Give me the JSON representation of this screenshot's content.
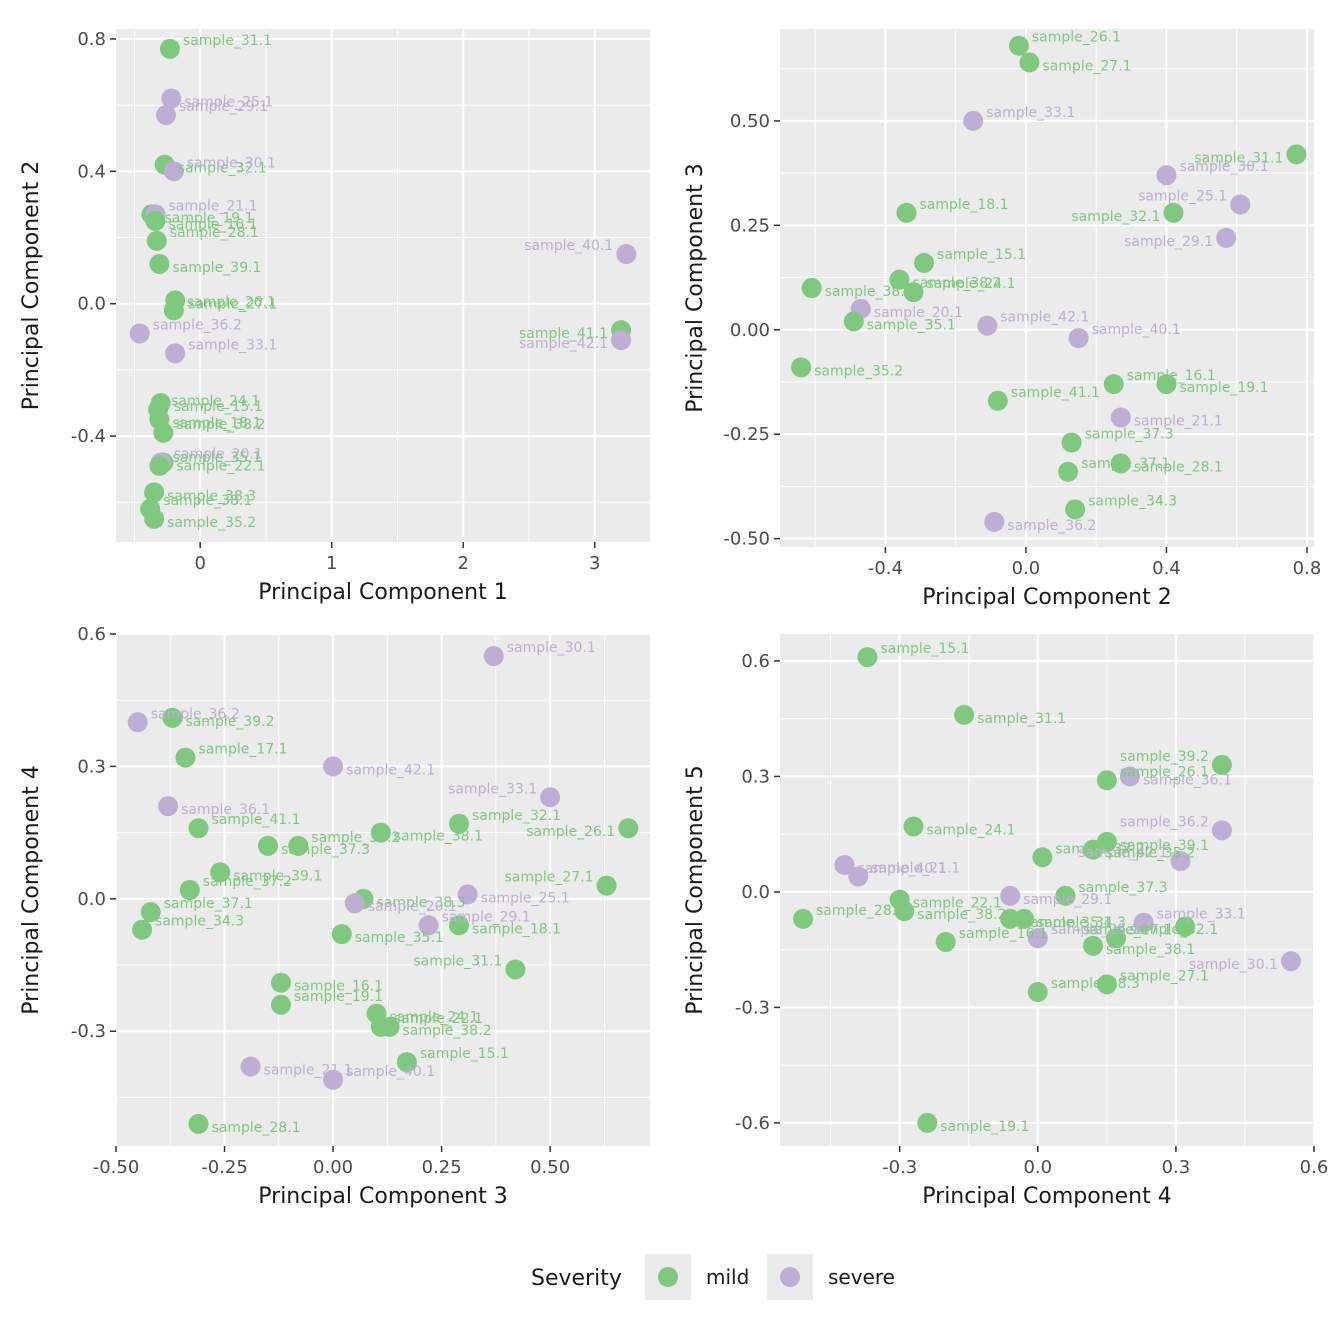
{
  "colors": {
    "mild": "#7fc97f",
    "severe": "#beaed4",
    "panel_bg": "#ebebeb",
    "grid": "#ffffff"
  },
  "legend": {
    "title": "Severity",
    "items": [
      {
        "key": "mild",
        "label": "mild"
      },
      {
        "key": "severe",
        "label": "severe"
      }
    ]
  },
  "chart_data": [
    {
      "type": "scatter",
      "xlabel": "Principal Component 1",
      "ylabel": "Principal Component 2",
      "xlim": [
        -0.64,
        3.42
      ],
      "ylim": [
        -0.72,
        0.83
      ],
      "xticks": [
        0,
        1,
        2,
        3
      ],
      "xtick_labels": [
        "0",
        "1",
        "2",
        "3"
      ],
      "yticks": [
        -0.4,
        0.0,
        0.4,
        0.8
      ],
      "ytick_labels": [
        "-0.4",
        "0.0",
        "0.4",
        "0.8"
      ],
      "points": [
        {
          "label": "sample_31.1",
          "severity": "mild",
          "x": -0.23,
          "y": 0.77
        },
        {
          "label": "sample_25.1",
          "severity": "severe",
          "x": -0.22,
          "y": 0.62
        },
        {
          "label": "sample_29.1",
          "severity": "severe",
          "x": -0.26,
          "y": 0.57
        },
        {
          "label": "sample_32.1",
          "severity": "mild",
          "x": -0.27,
          "y": 0.42
        },
        {
          "label": "sample_30.1",
          "severity": "severe",
          "x": -0.2,
          "y": 0.4
        },
        {
          "label": "sample_19.1",
          "severity": "mild",
          "x": -0.37,
          "y": 0.27
        },
        {
          "label": "sample_21.1",
          "severity": "severe",
          "x": -0.34,
          "y": 0.27
        },
        {
          "label": "sample_16.1",
          "severity": "mild",
          "x": -0.34,
          "y": 0.25
        },
        {
          "label": "sample_28.1",
          "severity": "mild",
          "x": -0.33,
          "y": 0.19
        },
        {
          "label": "sample_39.1",
          "severity": "mild",
          "x": -0.31,
          "y": 0.12
        },
        {
          "label": "sample_40.1",
          "severity": "severe",
          "x": 3.24,
          "y": 0.15
        },
        {
          "label": "sample_27.1",
          "severity": "mild",
          "x": -0.19,
          "y": 0.01
        },
        {
          "label": "sample_26.1",
          "severity": "mild",
          "x": -0.2,
          "y": -0.02
        },
        {
          "label": "sample_41.1",
          "severity": "mild",
          "x": 3.2,
          "y": -0.08
        },
        {
          "label": "sample_36.2",
          "severity": "severe",
          "x": -0.46,
          "y": -0.09
        },
        {
          "label": "sample_42.1",
          "severity": "severe",
          "x": 3.2,
          "y": -0.11
        },
        {
          "label": "sample_33.1",
          "severity": "severe",
          "x": -0.19,
          "y": -0.15
        },
        {
          "label": "sample_15.1",
          "severity": "mild",
          "x": -0.3,
          "y": -0.3
        },
        {
          "label": "sample_24.1",
          "severity": "mild",
          "x": -0.32,
          "y": -0.32
        },
        {
          "label": "sample_18.1",
          "severity": "mild",
          "x": -0.31,
          "y": -0.35
        },
        {
          "label": "sample_38.2",
          "severity": "mild",
          "x": -0.28,
          "y": -0.39
        },
        {
          "label": "sample_22.1",
          "severity": "mild",
          "x": -0.28,
          "y": -0.48
        },
        {
          "label": "sample_20.1",
          "severity": "severe",
          "x": -0.3,
          "y": -0.48
        },
        {
          "label": "sample_38.3",
          "severity": "mild",
          "x": -0.35,
          "y": -0.57
        },
        {
          "label": "sample_35.1",
          "severity": "mild",
          "x": -0.31,
          "y": -0.49
        },
        {
          "label": "sample_35.2",
          "severity": "mild",
          "x": -0.35,
          "y": -0.65
        },
        {
          "label": "sample_38.1",
          "severity": "mild",
          "x": -0.38,
          "y": -0.62
        }
      ]
    },
    {
      "type": "scatter",
      "xlabel": "Principal Component 2",
      "ylabel": "Principal Component 3",
      "xlim": [
        -0.7,
        0.82
      ],
      "ylim": [
        -0.52,
        0.72
      ],
      "xticks": [
        -0.4,
        0.0,
        0.4,
        0.8
      ],
      "xtick_labels": [
        "-0.4",
        "0.0",
        "0.4",
        "0.8"
      ],
      "yticks": [
        -0.5,
        -0.25,
        0.0,
        0.25,
        0.5
      ],
      "ytick_labels": [
        "-0.50",
        "-0.25",
        "0.00",
        "0.25",
        "0.50"
      ],
      "points": [
        {
          "label": "sample_26.1",
          "severity": "mild",
          "x": -0.02,
          "y": 0.68
        },
        {
          "label": "sample_27.1",
          "severity": "mild",
          "x": 0.01,
          "y": 0.64
        },
        {
          "label": "sample_33.1",
          "severity": "severe",
          "x": -0.15,
          "y": 0.5
        },
        {
          "label": "sample_31.1",
          "severity": "mild",
          "x": 0.77,
          "y": 0.42
        },
        {
          "label": "sample_30.1",
          "severity": "severe",
          "x": 0.4,
          "y": 0.37
        },
        {
          "label": "sample_32.1",
          "severity": "mild",
          "x": 0.42,
          "y": 0.28
        },
        {
          "label": "sample_25.1",
          "severity": "severe",
          "x": 0.61,
          "y": 0.3
        },
        {
          "label": "sample_29.1",
          "severity": "severe",
          "x": 0.57,
          "y": 0.22
        },
        {
          "label": "sample_18.1",
          "severity": "mild",
          "x": -0.34,
          "y": 0.28
        },
        {
          "label": "sample_38.2",
          "severity": "mild",
          "x": -0.36,
          "y": 0.12
        },
        {
          "label": "sample_15.1",
          "severity": "mild",
          "x": -0.29,
          "y": 0.16
        },
        {
          "label": "sample_38.1",
          "severity": "mild",
          "x": -0.61,
          "y": 0.1
        },
        {
          "label": "sample_24.1",
          "severity": "mild",
          "x": -0.32,
          "y": 0.09
        },
        {
          "label": "sample_20.1",
          "severity": "severe",
          "x": -0.47,
          "y": 0.05
        },
        {
          "label": "sample_42.1",
          "severity": "severe",
          "x": -0.11,
          "y": 0.01
        },
        {
          "label": "sample_35.1",
          "severity": "mild",
          "x": -0.49,
          "y": 0.02
        },
        {
          "label": "sample_40.1",
          "severity": "severe",
          "x": 0.15,
          "y": -0.02
        },
        {
          "label": "sample_35.2",
          "severity": "mild",
          "x": -0.64,
          "y": -0.09
        },
        {
          "label": "sample_16.1",
          "severity": "mild",
          "x": 0.25,
          "y": -0.13
        },
        {
          "label": "sample_19.1",
          "severity": "mild",
          "x": 0.4,
          "y": -0.13
        },
        {
          "label": "sample_41.1",
          "severity": "mild",
          "x": -0.08,
          "y": -0.17
        },
        {
          "label": "sample_21.1",
          "severity": "severe",
          "x": 0.27,
          "y": -0.21
        },
        {
          "label": "sample_37.3",
          "severity": "mild",
          "x": 0.13,
          "y": -0.27
        },
        {
          "label": "sample_28.1",
          "severity": "mild",
          "x": 0.27,
          "y": -0.32
        },
        {
          "label": "sample_37.1",
          "severity": "mild",
          "x": 0.12,
          "y": -0.34
        },
        {
          "label": "sample_36.2",
          "severity": "severe",
          "x": -0.09,
          "y": -0.46
        },
        {
          "label": "sample_34.3",
          "severity": "mild",
          "x": 0.14,
          "y": -0.43
        }
      ]
    },
    {
      "type": "scatter",
      "xlabel": "Principal Component 3",
      "ylabel": "Principal Component 4",
      "xlim": [
        -0.5,
        0.73
      ],
      "ylim": [
        -0.56,
        0.6
      ],
      "xticks": [
        -0.5,
        -0.25,
        0.0,
        0.25,
        0.5
      ],
      "xtick_labels": [
        "-0.50",
        "-0.25",
        "0.00",
        "0.25",
        "0.50"
      ],
      "yticks": [
        -0.3,
        0.0,
        0.3,
        0.6
      ],
      "ytick_labels": [
        "-0.3",
        "0.0",
        "0.3",
        "0.6"
      ],
      "points": [
        {
          "label": "sample_30.1",
          "severity": "severe",
          "x": 0.37,
          "y": 0.55
        },
        {
          "label": "sample_39.2",
          "severity": "mild",
          "x": -0.37,
          "y": 0.41
        },
        {
          "label": "sample_36.2",
          "severity": "severe",
          "x": -0.45,
          "y": 0.4
        },
        {
          "label": "sample_42.1",
          "severity": "severe",
          "x": 0.0,
          "y": 0.3
        },
        {
          "label": "sample_17.1",
          "severity": "mild",
          "x": -0.34,
          "y": 0.32
        },
        {
          "label": "sample_36.1",
          "severity": "severe",
          "x": -0.38,
          "y": 0.21
        },
        {
          "label": "sample_33.1",
          "severity": "severe",
          "x": 0.5,
          "y": 0.23
        },
        {
          "label": "sample_26.1",
          "severity": "mild",
          "x": 0.68,
          "y": 0.16
        },
        {
          "label": "sample_41.1",
          "severity": "mild",
          "x": -0.31,
          "y": 0.16
        },
        {
          "label": "sample_38.1",
          "severity": "mild",
          "x": 0.11,
          "y": 0.15
        },
        {
          "label": "sample_32.1",
          "severity": "mild",
          "x": 0.29,
          "y": 0.17
        },
        {
          "label": "sample_37.3",
          "severity": "mild",
          "x": -0.15,
          "y": 0.12
        },
        {
          "label": "sample_35.2",
          "severity": "mild",
          "x": -0.08,
          "y": 0.12
        },
        {
          "label": "sample_39.1",
          "severity": "mild",
          "x": -0.26,
          "y": 0.06
        },
        {
          "label": "sample_37.2",
          "severity": "mild",
          "x": -0.33,
          "y": 0.02
        },
        {
          "label": "sample_25.1",
          "severity": "severe",
          "x": 0.31,
          "y": 0.01
        },
        {
          "label": "sample_27.1",
          "severity": "mild",
          "x": 0.63,
          "y": 0.03
        },
        {
          "label": "sample_38.3",
          "severity": "mild",
          "x": 0.07,
          "y": 0.0
        },
        {
          "label": "sample_37.1",
          "severity": "mild",
          "x": -0.42,
          "y": -0.03
        },
        {
          "label": "sample_20.1",
          "severity": "severe",
          "x": 0.05,
          "y": -0.01
        },
        {
          "label": "sample_29.1",
          "severity": "severe",
          "x": 0.22,
          "y": -0.06
        },
        {
          "label": "sample_18.1",
          "severity": "mild",
          "x": 0.29,
          "y": -0.06
        },
        {
          "label": "sample_34.3",
          "severity": "mild",
          "x": -0.44,
          "y": -0.07
        },
        {
          "label": "sample_35.1",
          "severity": "mild",
          "x": 0.02,
          "y": -0.08
        },
        {
          "label": "sample_31.1",
          "severity": "mild",
          "x": 0.42,
          "y": -0.16
        },
        {
          "label": "sample_16.1",
          "severity": "mild",
          "x": -0.12,
          "y": -0.19
        },
        {
          "label": "sample_19.1",
          "severity": "mild",
          "x": -0.12,
          "y": -0.24
        },
        {
          "label": "sample_24.1",
          "severity": "mild",
          "x": 0.1,
          "y": -0.26
        },
        {
          "label": "sample_22.1",
          "severity": "mild",
          "x": 0.11,
          "y": -0.29
        },
        {
          "label": "sample_38.2",
          "severity": "mild",
          "x": 0.13,
          "y": -0.29
        },
        {
          "label": "sample_15.1",
          "severity": "mild",
          "x": 0.17,
          "y": -0.37
        },
        {
          "label": "sample_21.1",
          "severity": "severe",
          "x": -0.19,
          "y": -0.38
        },
        {
          "label": "sample_40.1",
          "severity": "severe",
          "x": 0.0,
          "y": -0.41
        },
        {
          "label": "sample_28.1",
          "severity": "mild",
          "x": -0.31,
          "y": -0.51
        }
      ]
    },
    {
      "type": "scatter",
      "xlabel": "Principal Component 4",
      "ylabel": "Principal Component 5",
      "xlim": [
        -0.56,
        0.6
      ],
      "ylim": [
        -0.66,
        0.67
      ],
      "xticks": [
        -0.3,
        0.0,
        0.3,
        0.6
      ],
      "xtick_labels": [
        "-0.3",
        "0.0",
        "0.3",
        "0.6"
      ],
      "yticks": [
        -0.6,
        -0.3,
        0.0,
        0.3,
        0.6
      ],
      "ytick_labels": [
        "-0.6",
        "-0.3",
        "0.0",
        "0.3",
        "0.6"
      ],
      "points": [
        {
          "label": "sample_15.1",
          "severity": "mild",
          "x": -0.37,
          "y": 0.61
        },
        {
          "label": "sample_31.1",
          "severity": "mild",
          "x": -0.16,
          "y": 0.46
        },
        {
          "label": "sample_39.2",
          "severity": "mild",
          "x": 0.4,
          "y": 0.33
        },
        {
          "label": "sample_36.1",
          "severity": "severe",
          "x": 0.2,
          "y": 0.3
        },
        {
          "label": "sample_26.1",
          "severity": "mild",
          "x": 0.15,
          "y": 0.29
        },
        {
          "label": "sample_24.1",
          "severity": "mild",
          "x": -0.27,
          "y": 0.17
        },
        {
          "label": "sample_36.2",
          "severity": "severe",
          "x": 0.4,
          "y": 0.16
        },
        {
          "label": "sample_39.1",
          "severity": "mild",
          "x": 0.15,
          "y": 0.13
        },
        {
          "label": "sample_37.2",
          "severity": "mild",
          "x": 0.01,
          "y": 0.09
        },
        {
          "label": "sample_40.1",
          "severity": "severe",
          "x": -0.42,
          "y": 0.07
        },
        {
          "label": "sample_42.1",
          "severity": "severe",
          "x": 0.31,
          "y": 0.08
        },
        {
          "label": "sample_35.2",
          "severity": "mild",
          "x": 0.12,
          "y": 0.11
        },
        {
          "label": "sample_21.1",
          "severity": "severe",
          "x": -0.39,
          "y": 0.04
        },
        {
          "label": "sample_29.1",
          "severity": "severe",
          "x": -0.06,
          "y": -0.01
        },
        {
          "label": "sample_33.1",
          "severity": "severe",
          "x": 0.23,
          "y": -0.08
        },
        {
          "label": "sample_22.1",
          "severity": "mild",
          "x": -0.3,
          "y": -0.02
        },
        {
          "label": "sample_37.3",
          "severity": "mild",
          "x": 0.06,
          "y": -0.01
        },
        {
          "label": "sample_17.1",
          "severity": "mild",
          "x": 0.32,
          "y": -0.09
        },
        {
          "label": "sample_28.1",
          "severity": "mild",
          "x": -0.51,
          "y": -0.07
        },
        {
          "label": "sample_35.1",
          "severity": "mild",
          "x": -0.06,
          "y": -0.07
        },
        {
          "label": "sample_32.1",
          "severity": "mild",
          "x": 0.17,
          "y": -0.12
        },
        {
          "label": "sample_38.2",
          "severity": "mild",
          "x": -0.29,
          "y": -0.05
        },
        {
          "label": "sample_16.1",
          "severity": "mild",
          "x": -0.2,
          "y": -0.13
        },
        {
          "label": "sample_34.3",
          "severity": "mild",
          "x": -0.03,
          "y": -0.07
        },
        {
          "label": "sample_25.1",
          "severity": "severe",
          "x": 0.0,
          "y": -0.12
        },
        {
          "label": "sample_38.1",
          "severity": "mild",
          "x": 0.12,
          "y": -0.14
        },
        {
          "label": "sample_27.1",
          "severity": "mild",
          "x": 0.15,
          "y": -0.24
        },
        {
          "label": "sample_30.1",
          "severity": "severe",
          "x": 0.55,
          "y": -0.18
        },
        {
          "label": "sample_38.3",
          "severity": "mild",
          "x": 0.0,
          "y": -0.26
        },
        {
          "label": "sample_19.1",
          "severity": "mild",
          "x": -0.24,
          "y": -0.6
        }
      ]
    }
  ]
}
